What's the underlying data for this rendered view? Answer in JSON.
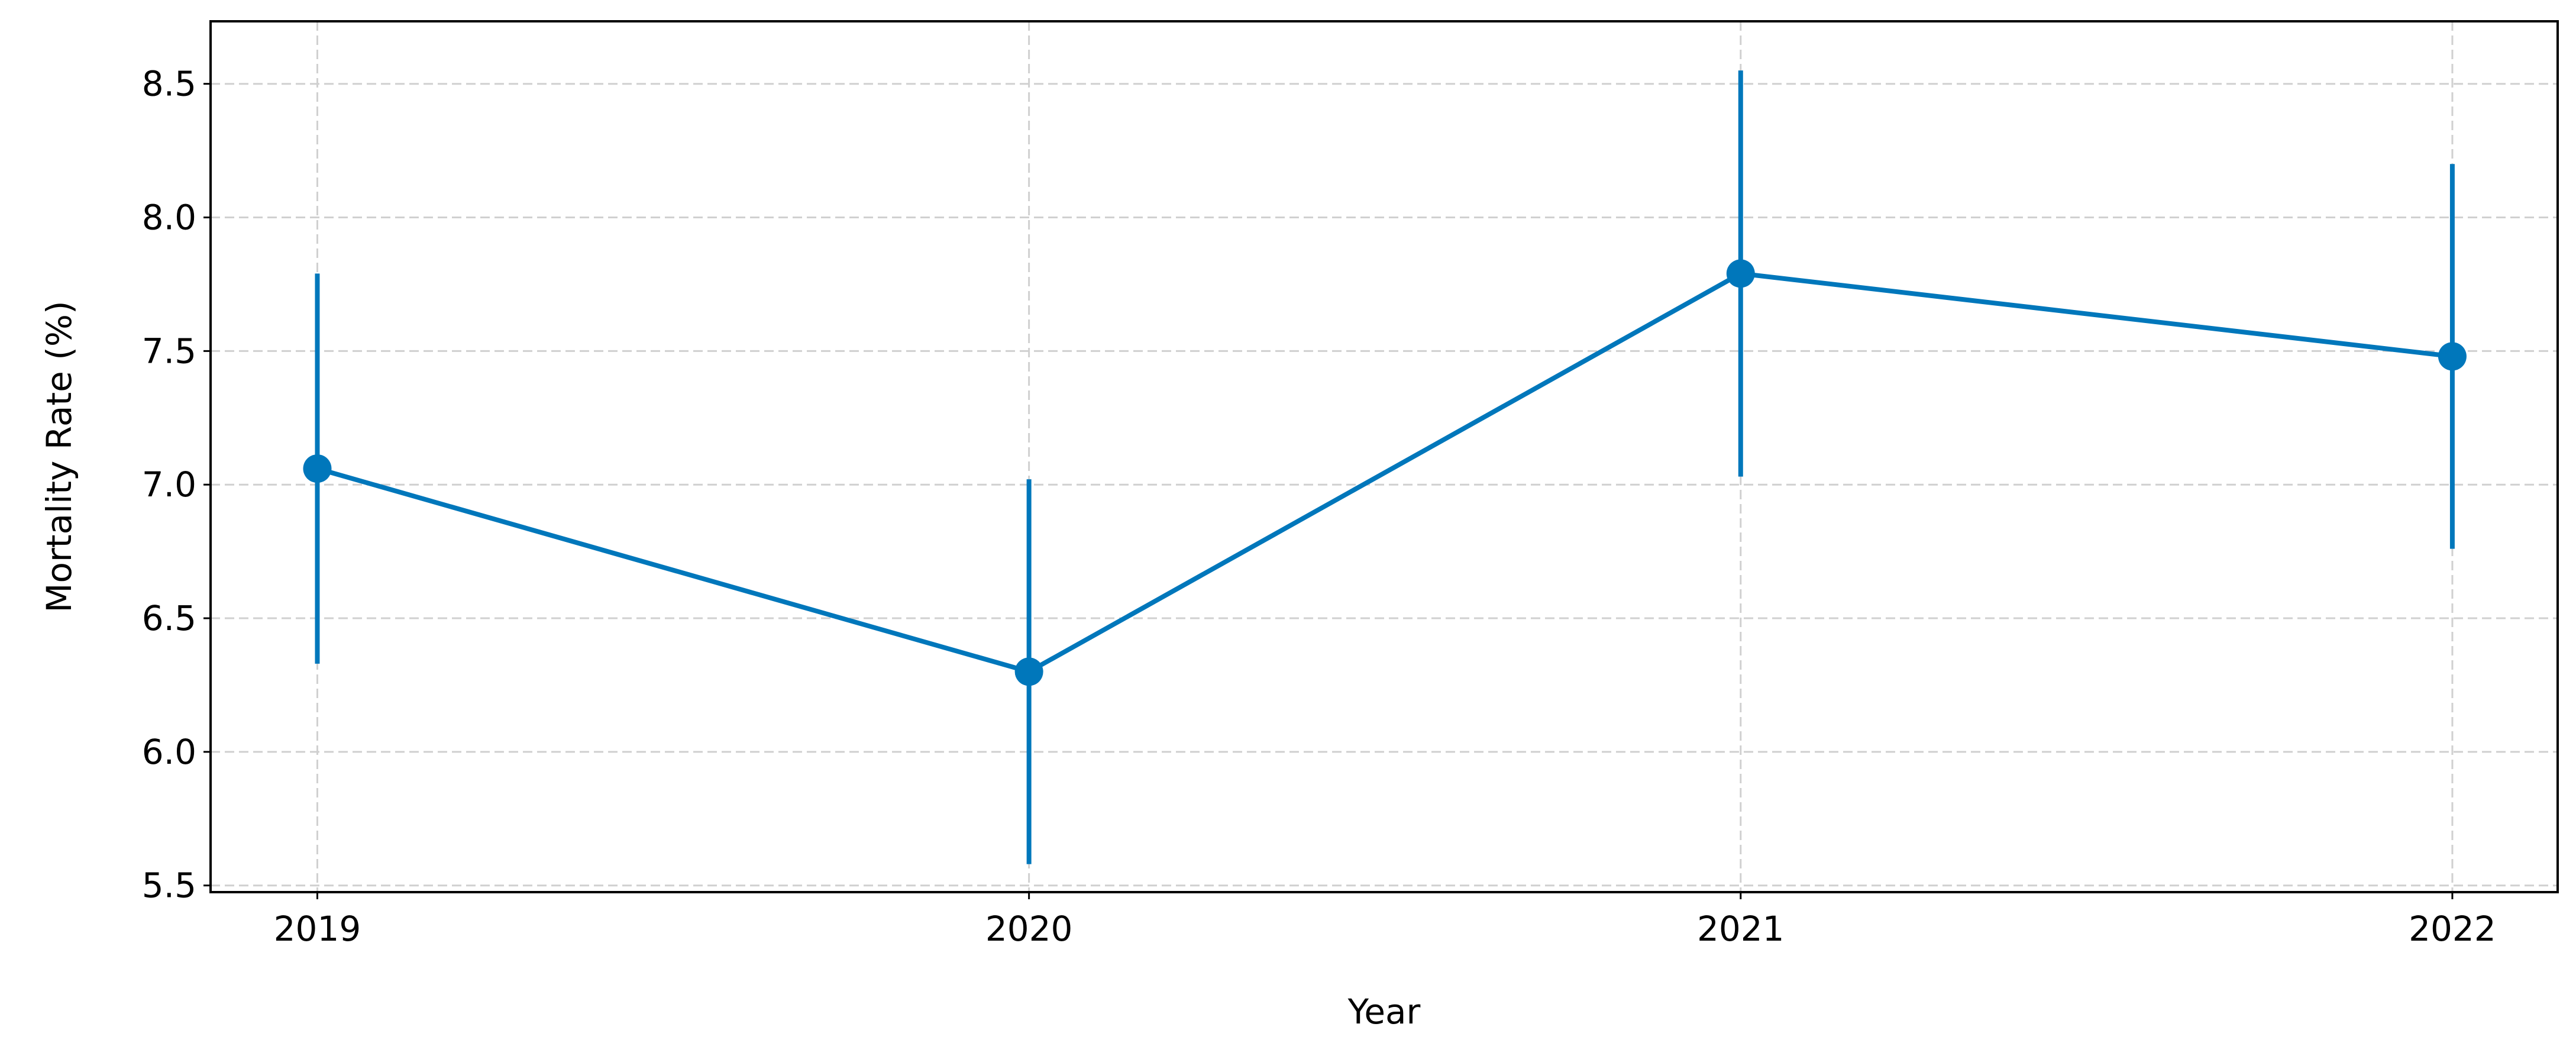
{
  "chart_data": {
    "type": "errorbar-line",
    "x_label": "Year",
    "y_label": "Mortality Rate (%)",
    "x": [
      2019,
      2020,
      2021,
      2022
    ],
    "values": [
      7.06,
      6.3,
      7.79,
      7.48
    ],
    "errors": [
      0.73,
      0.72,
      0.76,
      0.72
    ],
    "color": "#0077bb",
    "xlim": [
      2018.85,
      2022.148
    ],
    "xticks": [
      2019,
      2020,
      2021,
      2022
    ],
    "ylim": [
      5.475,
      8.734
    ],
    "yticks": [
      5.5,
      {
        "value": 6,
        "label": "6.0"
      },
      6.5,
      {
        "value": 7,
        "label": "7.0"
      },
      7.5,
      {
        "value": 8,
        "label": "8.0"
      },
      8.5
    ],
    "grid": true
  }
}
